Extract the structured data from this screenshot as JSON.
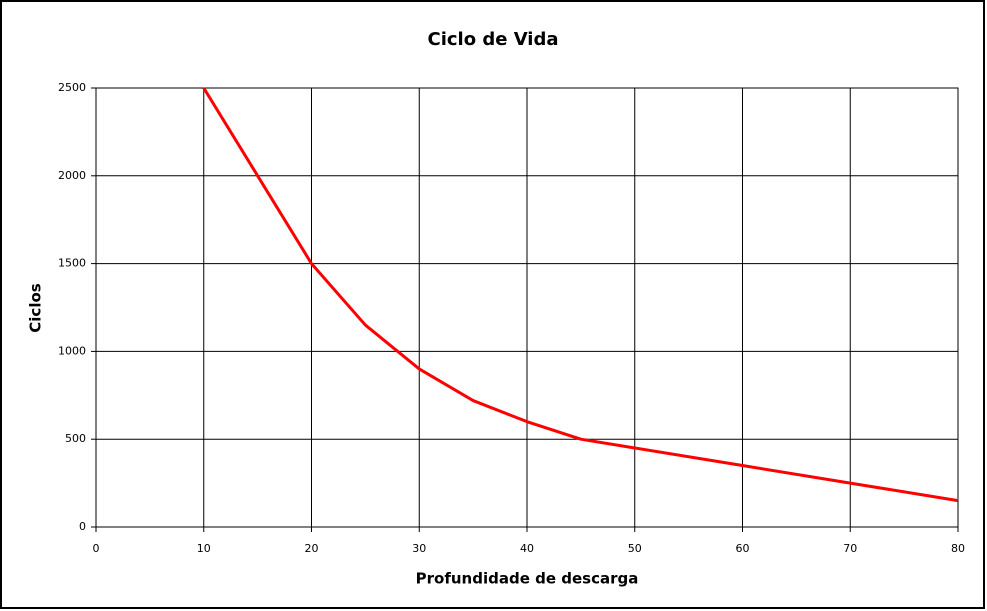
{
  "chart_data": {
    "type": "line",
    "title": "Ciclo de Vida",
    "x_label": "Profundidade de descarga",
    "y_label": "Ciclos",
    "x": [
      10,
      15,
      20,
      25,
      30,
      35,
      40,
      45,
      50,
      60,
      70,
      80
    ],
    "values": [
      2500,
      2000,
      1500,
      1150,
      900,
      720,
      600,
      500,
      450,
      350,
      250,
      150
    ],
    "color": "#ff0000",
    "xlim": [
      0,
      80
    ],
    "xticks": [
      0,
      10,
      20,
      30,
      40,
      50,
      60,
      70,
      80
    ],
    "ylim": [
      0,
      2500
    ],
    "yticks": [
      0,
      500,
      1000,
      1500,
      2000,
      2500
    ],
    "grid": true
  }
}
